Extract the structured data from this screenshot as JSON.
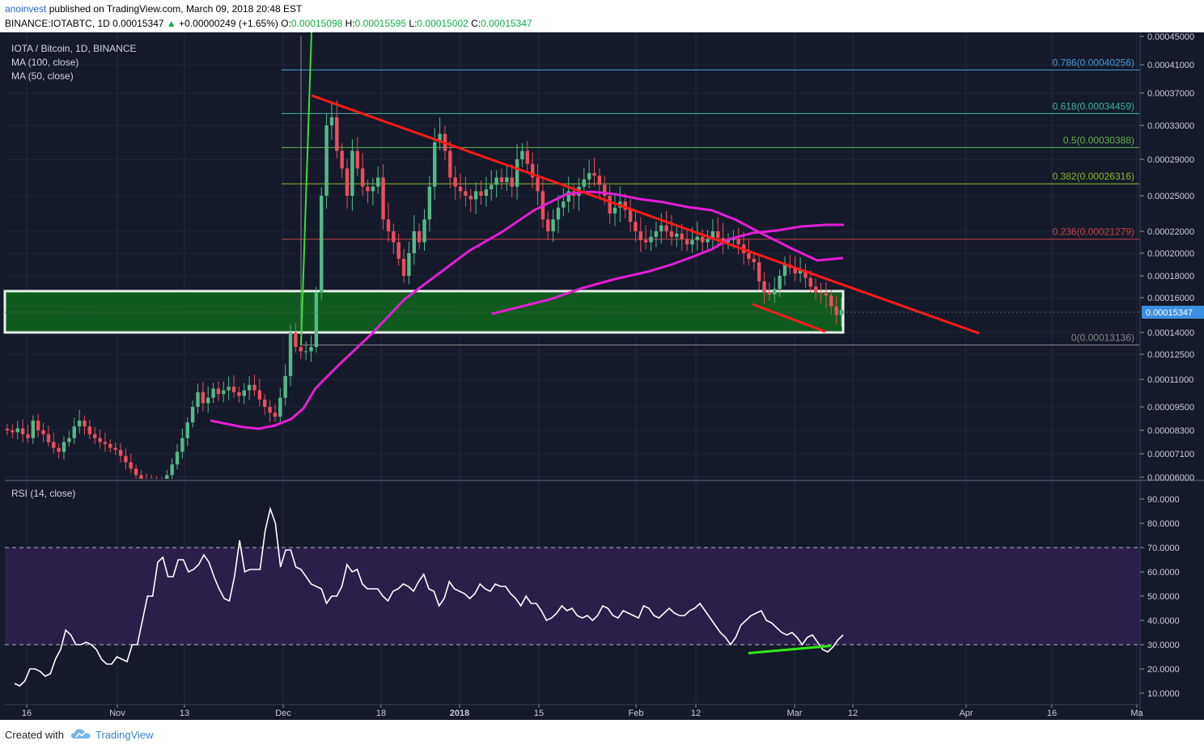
{
  "header": {
    "author": "anoinvest",
    "published": "published on TradingView.com, March 09, 2018 20:48 EST",
    "symbol_line": "BINANCE:IOTABTC, 1D",
    "last": "0.00015347",
    "change": "+0.00000249 (+1.65%)",
    "o_label": "O:",
    "o_value": "0.00015098",
    "h_label": "H:",
    "h_value": "0.00015595",
    "l_label": "L:",
    "l_value": "0.00015002",
    "c_label": "C:",
    "c_value": "0.00015347"
  },
  "legend": {
    "title": "IOTA / Bitcoin, 1D, BINANCE",
    "ma100": "MA (100, close)",
    "ma50": "MA (50, close)",
    "rsi": "RSI (14, close)"
  },
  "footer": {
    "created": "Created with",
    "brand": "TradingView"
  },
  "colors": {
    "background": "#141a2a",
    "up": "#53b987",
    "down": "#eb4d5c",
    "ma": "#e41ed4",
    "trend": "#ff1a1a",
    "zone": "#0f5a1e",
    "rsi_band": "#2b1e48",
    "rsi_divergence": "#33e81c"
  },
  "chart_data": [
    {
      "type": "candlestick",
      "title": "IOTA / Bitcoin, 1D, BINANCE",
      "price_axis_ticks": [
        "0.00045000",
        "0.00041000",
        "0.00037000",
        "0.00033000",
        "0.00029000",
        "0.00025000",
        "0.00022000",
        "0.00020000",
        "0.00018000",
        "0.00016000",
        "0.00014000",
        "0.00012500",
        "0.00011000",
        "0.00009500",
        "0.00008300",
        "0.00007100",
        "0.00006000"
      ],
      "time_axis_ticks": [
        "16",
        "Nov",
        "13",
        "Dec",
        "18",
        "2018",
        "15",
        "Feb",
        "12",
        "Mar",
        "12",
        "Apr",
        "16",
        "Ma"
      ],
      "current_price_label": "0.00015347",
      "fib_levels": [
        {
          "label": "0.786(0.00040256)",
          "value": 0.00040256,
          "color": "#4a9ad6"
        },
        {
          "label": "0.618(0.00034459)",
          "value": 0.00034459,
          "color": "#3bb39a"
        },
        {
          "label": "0.5(0.00030388)",
          "value": 0.00030388,
          "color": "#5bb64a"
        },
        {
          "label": "0.382(0.00026316)",
          "value": 0.00026316,
          "color": "#8ab82e"
        },
        {
          "label": "0.236(0.00021279)",
          "value": 0.00021279,
          "color": "#c24444"
        },
        {
          "label": "0(0.00013136)",
          "value": 0.00013136,
          "color": "#888888"
        }
      ],
      "support_zone": [
        0.00014,
        0.000166
      ],
      "close_series": [
        8.3e-05,
        8.2e-05,
        8.4e-05,
        8.1e-05,
        7.9e-05,
        8.8e-05,
        8.3e-05,
        8.1e-05,
        7.7e-05,
        7.4e-05,
        7.2e-05,
        7.7e-05,
        7.9e-05,
        8.5e-05,
        8.8e-05,
        8.5e-05,
        8.1e-05,
        7.9e-05,
        7.7e-05,
        7.6e-05,
        7.4e-05,
        7.3e-05,
        7e-05,
        6.7e-05,
        6.4e-05,
        6.1e-05,
        5.9e-05,
        5.8e-05,
        5.7e-05,
        5.6e-05,
        5.8e-05,
        6.1e-05,
        6.6e-05,
        7.2e-05,
        7.9e-05,
        8.7e-05,
        9.5e-05,
        0.000103,
        9.7e-05,
        0.0001,
        0.000105,
        0.000102,
        0.000104,
        0.000106,
        0.000103,
        0.000101,
        0.000104,
        0.000107,
        0.000104,
        9.9e-05,
        9.5e-05,
        9.2e-05,
        9e-05,
        0.0001,
        0.000112,
        0.00014,
        0.00013,
        0.000127,
        0.000127,
        0.00013,
        0.000165,
        0.00025,
        0.00033,
        0.00034,
        0.0003,
        0.00028,
        0.00025,
        0.0003,
        0.00028,
        0.00026,
        0.000255,
        0.00026,
        0.00027,
        0.00023,
        0.00022,
        0.00021,
        0.000195,
        0.00018,
        0.0002,
        0.00022,
        0.00021,
        0.00023,
        0.00026,
        0.00031,
        0.00032,
        0.0003,
        0.00027,
        0.00026,
        0.000255,
        0.00025,
        0.000247,
        0.000255,
        0.00025,
        0.000257,
        0.000262,
        0.00027,
        0.000265,
        0.00027,
        0.00026,
        0.00029,
        0.0003,
        0.000285,
        0.00027,
        0.000255,
        0.00023,
        0.00022,
        0.00023,
        0.00024,
        0.000245,
        0.000255,
        0.00025,
        0.00026,
        0.000268,
        0.000275,
        0.000272,
        0.000262,
        0.00025,
        0.000235,
        0.00024,
        0.000245,
        0.000238,
        0.000228,
        0.00022,
        0.000212,
        0.00021,
        0.000215,
        0.00022,
        0.000225,
        0.00022,
        0.000215,
        0.000218,
        0.000213,
        0.000208,
        0.000212,
        0.000215,
        0.00021,
        0.000213,
        0.00022,
        0.000214,
        0.00021,
        0.000212,
        0.000213,
        0.000208,
        0.0002,
        0.000195,
        0.000192,
        0.000175,
        0.000165,
        0.000163,
        0.000168,
        0.00018,
        0.00019,
        0.000187,
        0.000182,
        0.000185,
        0.000178,
        0.00017,
        0.000165,
        0.000164,
        0.000162,
        0.000155,
        0.00015,
        0.000153
      ],
      "ma100_color": "#e41ed4",
      "ma50_color": "#e41ed4"
    },
    {
      "type": "line",
      "title": "RSI (14, close)",
      "y_ticks": [
        "90.0000",
        "80.0000",
        "70.0000",
        "60.0000",
        "50.0000",
        "40.0000",
        "30.0000",
        "20.0000",
        "10.0000"
      ],
      "band": [
        30,
        70
      ],
      "values": [
        14,
        13,
        15,
        20,
        20,
        19,
        17,
        18,
        24,
        28,
        36,
        34,
        30,
        30,
        31,
        30,
        28,
        24,
        22,
        22,
        25,
        24,
        23,
        30,
        30,
        40,
        50,
        50,
        64,
        66,
        58,
        58,
        65,
        65,
        60,
        61,
        63,
        67,
        64,
        58,
        53,
        49,
        48,
        58,
        73,
        60,
        61,
        61,
        61,
        77,
        86,
        80,
        62,
        69,
        69,
        62,
        61,
        58,
        55,
        54,
        53,
        47,
        50,
        50,
        54,
        63,
        60,
        61,
        55,
        53,
        53,
        53,
        50,
        48,
        52,
        53,
        55,
        54,
        52,
        56,
        59,
        53,
        52,
        46,
        49,
        56,
        53,
        52,
        51,
        49,
        51,
        55,
        53,
        52,
        55,
        54,
        54,
        51,
        49,
        46,
        50,
        47,
        47,
        44,
        40,
        41,
        43,
        46,
        44,
        45,
        42,
        41,
        42,
        40,
        42,
        46,
        45,
        42,
        41,
        44,
        43,
        42,
        41,
        46,
        45,
        42,
        41,
        43,
        45,
        43,
        42,
        42,
        44,
        45,
        47,
        44,
        41,
        38,
        35,
        33,
        30,
        33,
        38,
        40,
        42,
        43,
        44,
        40,
        39,
        37,
        35,
        34,
        35,
        33,
        30,
        33,
        34,
        31,
        28,
        27,
        29,
        32,
        34
      ]
    }
  ]
}
